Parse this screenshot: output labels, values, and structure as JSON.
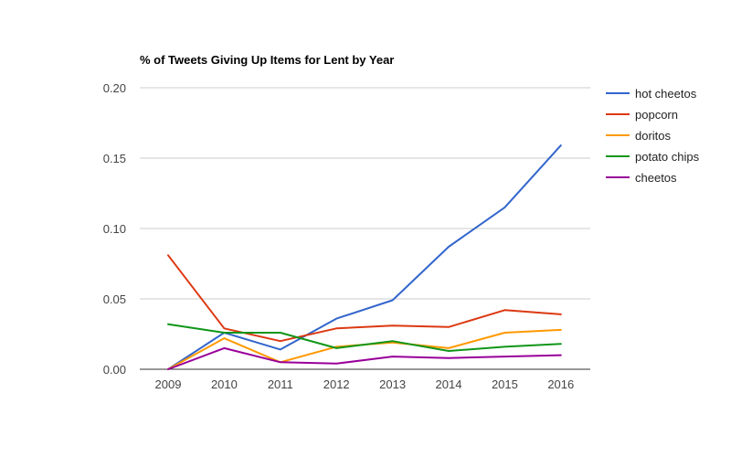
{
  "chart_data": {
    "type": "line",
    "title": "% of Tweets Giving Up Items for Lent by Year",
    "xlabel": "",
    "ylabel": "",
    "x": [
      "2009",
      "2010",
      "2011",
      "2012",
      "2013",
      "2014",
      "2015",
      "2016"
    ],
    "ylim": [
      0,
      0.2
    ],
    "yticks": [
      "0.00",
      "0.05",
      "0.10",
      "0.15",
      "0.20"
    ],
    "grid": true,
    "legend_position": "right",
    "series": [
      {
        "name": "hot cheetos",
        "color": "#3366cc",
        "values": [
          0.0,
          0.026,
          0.014,
          0.036,
          0.049,
          0.087,
          0.115,
          0.159
        ]
      },
      {
        "name": "popcorn",
        "color": "#dc3912",
        "values": [
          0.081,
          0.029,
          0.02,
          0.029,
          0.031,
          0.03,
          0.042,
          0.039
        ]
      },
      {
        "name": "doritos",
        "color": "#ff9900",
        "values": [
          0.0,
          0.022,
          0.005,
          0.016,
          0.019,
          0.015,
          0.026,
          0.028
        ]
      },
      {
        "name": "potato chips",
        "color": "#109618",
        "values": [
          0.032,
          0.026,
          0.026,
          0.015,
          0.02,
          0.013,
          0.016,
          0.018
        ]
      },
      {
        "name": "cheetos",
        "color": "#990099",
        "values": [
          0.0,
          0.015,
          0.005,
          0.004,
          0.009,
          0.008,
          0.009,
          0.01
        ]
      }
    ]
  }
}
